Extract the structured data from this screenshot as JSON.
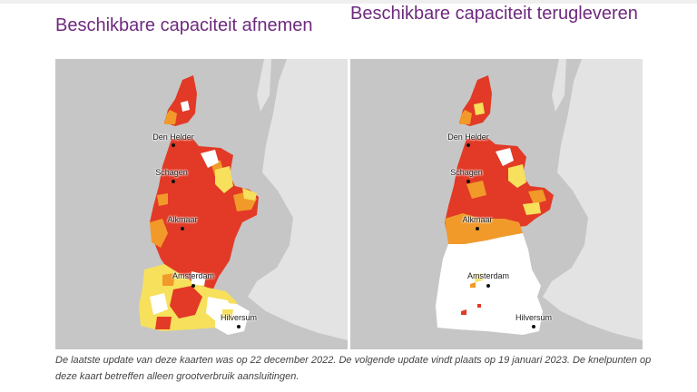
{
  "maps": [
    {
      "title": "Beschikbare capaciteit afnemen",
      "cities": [
        {
          "name": "Den Helder"
        },
        {
          "name": "Schagen"
        },
        {
          "name": "Alkmaar"
        },
        {
          "name": "Amsterdam"
        },
        {
          "name": "Hilversum"
        }
      ]
    },
    {
      "title": "Beschikbare capaciteit terugleveren",
      "cities": [
        {
          "name": "Den Helder"
        },
        {
          "name": "Schagen"
        },
        {
          "name": "Alkmaar"
        },
        {
          "name": "Amsterdam"
        },
        {
          "name": "Hilversum"
        }
      ]
    }
  ],
  "caption": "De laatste update van deze kaarten was op 22 december 2022. De volgende update vindt plaats op 19 januari 2023. De knelpunten op deze kaart betreffen alleen grootverbruik aansluitingen.",
  "colors": {
    "sea": "#c6c6c6",
    "land": "#e3e3e3",
    "red": "#e23a26",
    "orange": "#f19a2a",
    "yellow": "#f6e05c",
    "white": "#ffffff",
    "title": "#6e2a7e"
  }
}
